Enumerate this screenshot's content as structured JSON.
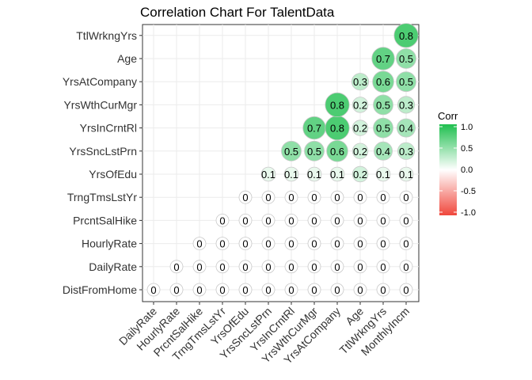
{
  "chart_data": {
    "type": "correlogram",
    "title": "Correlation Chart For TalentData",
    "x_labels": [
      "DailyRate",
      "HourlyRate",
      "PrcntSalHike",
      "TrngTmsLstYr",
      "YrsOfEdu",
      "YrsSncLstPrn",
      "YrsInCrntRl",
      "YrsWthCurMgr",
      "YrsAtCompany",
      "Age",
      "TtlWrkngYrs",
      "MonthlyIncm"
    ],
    "y_labels": [
      "DistFromHome",
      "DailyRate",
      "HourlyRate",
      "PrcntSalHike",
      "TrngTmsLstYr",
      "YrsOfEdu",
      "YrsSncLstPrn",
      "YrsInCrntRl",
      "YrsWthCurMgr",
      "YrsAtCompany",
      "Age",
      "TtlWrkngYrs"
    ],
    "cells": [
      {
        "x": "DailyRate",
        "y": "DistFromHome",
        "value": 0,
        "label": "0"
      },
      {
        "x": "HourlyRate",
        "y": "DistFromHome",
        "value": 0,
        "label": "0"
      },
      {
        "x": "PrcntSalHike",
        "y": "DistFromHome",
        "value": 0,
        "label": "0"
      },
      {
        "x": "TrngTmsLstYr",
        "y": "DistFromHome",
        "value": 0,
        "label": "0"
      },
      {
        "x": "YrsOfEdu",
        "y": "DistFromHome",
        "value": 0,
        "label": "0"
      },
      {
        "x": "YrsSncLstPrn",
        "y": "DistFromHome",
        "value": 0,
        "label": "0"
      },
      {
        "x": "YrsInCrntRl",
        "y": "DistFromHome",
        "value": 0,
        "label": "0"
      },
      {
        "x": "YrsWthCurMgr",
        "y": "DistFromHome",
        "value": 0,
        "label": "0"
      },
      {
        "x": "YrsAtCompany",
        "y": "DistFromHome",
        "value": 0,
        "label": "0"
      },
      {
        "x": "Age",
        "y": "DistFromHome",
        "value": 0,
        "label": "0"
      },
      {
        "x": "TtlWrkngYrs",
        "y": "DistFromHome",
        "value": 0,
        "label": "0"
      },
      {
        "x": "MonthlyIncm",
        "y": "DistFromHome",
        "value": 0,
        "label": "0"
      },
      {
        "x": "HourlyRate",
        "y": "DailyRate",
        "value": 0,
        "label": "0"
      },
      {
        "x": "PrcntSalHike",
        "y": "DailyRate",
        "value": 0,
        "label": "0"
      },
      {
        "x": "TrngTmsLstYr",
        "y": "DailyRate",
        "value": 0,
        "label": "0"
      },
      {
        "x": "YrsOfEdu",
        "y": "DailyRate",
        "value": 0,
        "label": "0"
      },
      {
        "x": "YrsSncLstPrn",
        "y": "DailyRate",
        "value": 0,
        "label": "0"
      },
      {
        "x": "YrsInCrntRl",
        "y": "DailyRate",
        "value": 0,
        "label": "0"
      },
      {
        "x": "YrsWthCurMgr",
        "y": "DailyRate",
        "value": 0,
        "label": "0"
      },
      {
        "x": "YrsAtCompany",
        "y": "DailyRate",
        "value": 0,
        "label": "0"
      },
      {
        "x": "Age",
        "y": "DailyRate",
        "value": 0,
        "label": "0"
      },
      {
        "x": "TtlWrkngYrs",
        "y": "DailyRate",
        "value": 0,
        "label": "0"
      },
      {
        "x": "MonthlyIncm",
        "y": "DailyRate",
        "value": 0,
        "label": "0"
      },
      {
        "x": "PrcntSalHike",
        "y": "HourlyRate",
        "value": 0,
        "label": "0"
      },
      {
        "x": "TrngTmsLstYr",
        "y": "HourlyRate",
        "value": 0,
        "label": "0"
      },
      {
        "x": "YrsOfEdu",
        "y": "HourlyRate",
        "value": 0,
        "label": "0"
      },
      {
        "x": "YrsSncLstPrn",
        "y": "HourlyRate",
        "value": 0,
        "label": "0"
      },
      {
        "x": "YrsInCrntRl",
        "y": "HourlyRate",
        "value": 0,
        "label": "0"
      },
      {
        "x": "YrsWthCurMgr",
        "y": "HourlyRate",
        "value": 0,
        "label": "0"
      },
      {
        "x": "YrsAtCompany",
        "y": "HourlyRate",
        "value": 0,
        "label": "0"
      },
      {
        "x": "Age",
        "y": "HourlyRate",
        "value": 0,
        "label": "0"
      },
      {
        "x": "TtlWrkngYrs",
        "y": "HourlyRate",
        "value": 0,
        "label": "0"
      },
      {
        "x": "MonthlyIncm",
        "y": "HourlyRate",
        "value": 0,
        "label": "0"
      },
      {
        "x": "TrngTmsLstYr",
        "y": "PrcntSalHike",
        "value": 0,
        "label": "0"
      },
      {
        "x": "YrsOfEdu",
        "y": "PrcntSalHike",
        "value": 0,
        "label": "0"
      },
      {
        "x": "YrsSncLstPrn",
        "y": "PrcntSalHike",
        "value": 0,
        "label": "0"
      },
      {
        "x": "YrsInCrntRl",
        "y": "PrcntSalHike",
        "value": 0,
        "label": "0"
      },
      {
        "x": "YrsWthCurMgr",
        "y": "PrcntSalHike",
        "value": 0,
        "label": "0"
      },
      {
        "x": "YrsAtCompany",
        "y": "PrcntSalHike",
        "value": 0,
        "label": "0"
      },
      {
        "x": "Age",
        "y": "PrcntSalHike",
        "value": 0,
        "label": "0"
      },
      {
        "x": "TtlWrkngYrs",
        "y": "PrcntSalHike",
        "value": 0,
        "label": "0"
      },
      {
        "x": "MonthlyIncm",
        "y": "PrcntSalHike",
        "value": 0,
        "label": "0"
      },
      {
        "x": "YrsOfEdu",
        "y": "TrngTmsLstYr",
        "value": 0,
        "label": "0"
      },
      {
        "x": "YrsSncLstPrn",
        "y": "TrngTmsLstYr",
        "value": 0,
        "label": "0"
      },
      {
        "x": "YrsInCrntRl",
        "y": "TrngTmsLstYr",
        "value": 0,
        "label": "0"
      },
      {
        "x": "YrsWthCurMgr",
        "y": "TrngTmsLstYr",
        "value": 0,
        "label": "0"
      },
      {
        "x": "YrsAtCompany",
        "y": "TrngTmsLstYr",
        "value": 0,
        "label": "0"
      },
      {
        "x": "Age",
        "y": "TrngTmsLstYr",
        "value": 0,
        "label": "0"
      },
      {
        "x": "TtlWrkngYrs",
        "y": "TrngTmsLstYr",
        "value": 0,
        "label": "0"
      },
      {
        "x": "MonthlyIncm",
        "y": "TrngTmsLstYr",
        "value": 0,
        "label": "0"
      },
      {
        "x": "YrsSncLstPrn",
        "y": "YrsOfEdu",
        "value": 0.1,
        "label": "0.1"
      },
      {
        "x": "YrsInCrntRl",
        "y": "YrsOfEdu",
        "value": 0.1,
        "label": "0.1"
      },
      {
        "x": "YrsWthCurMgr",
        "y": "YrsOfEdu",
        "value": 0.1,
        "label": "0.1"
      },
      {
        "x": "YrsAtCompany",
        "y": "YrsOfEdu",
        "value": 0.1,
        "label": "0.1"
      },
      {
        "x": "Age",
        "y": "YrsOfEdu",
        "value": 0.2,
        "label": "0.2"
      },
      {
        "x": "TtlWrkngYrs",
        "y": "YrsOfEdu",
        "value": 0.1,
        "label": "0.1"
      },
      {
        "x": "MonthlyIncm",
        "y": "YrsOfEdu",
        "value": 0.1,
        "label": "0.1"
      },
      {
        "x": "YrsInCrntRl",
        "y": "YrsSncLstPrn",
        "value": 0.5,
        "label": "0.5"
      },
      {
        "x": "YrsWthCurMgr",
        "y": "YrsSncLstPrn",
        "value": 0.5,
        "label": "0.5"
      },
      {
        "x": "YrsAtCompany",
        "y": "YrsSncLstPrn",
        "value": 0.6,
        "label": "0.6"
      },
      {
        "x": "Age",
        "y": "YrsSncLstPrn",
        "value": 0.2,
        "label": "0.2"
      },
      {
        "x": "TtlWrkngYrs",
        "y": "YrsSncLstPrn",
        "value": 0.4,
        "label": "0.4"
      },
      {
        "x": "MonthlyIncm",
        "y": "YrsSncLstPrn",
        "value": 0.3,
        "label": "0.3"
      },
      {
        "x": "YrsWthCurMgr",
        "y": "YrsInCrntRl",
        "value": 0.7,
        "label": "0.7"
      },
      {
        "x": "YrsAtCompany",
        "y": "YrsInCrntRl",
        "value": 0.8,
        "label": "0.8"
      },
      {
        "x": "Age",
        "y": "YrsInCrntRl",
        "value": 0.2,
        "label": "0.2"
      },
      {
        "x": "TtlWrkngYrs",
        "y": "YrsInCrntRl",
        "value": 0.5,
        "label": "0.5"
      },
      {
        "x": "MonthlyIncm",
        "y": "YrsInCrntRl",
        "value": 0.4,
        "label": "0.4"
      },
      {
        "x": "YrsAtCompany",
        "y": "YrsWthCurMgr",
        "value": 0.8,
        "label": "0.8"
      },
      {
        "x": "Age",
        "y": "YrsWthCurMgr",
        "value": 0.2,
        "label": "0.2"
      },
      {
        "x": "TtlWrkngYrs",
        "y": "YrsWthCurMgr",
        "value": 0.5,
        "label": "0.5"
      },
      {
        "x": "MonthlyIncm",
        "y": "YrsWthCurMgr",
        "value": 0.3,
        "label": "0.3"
      },
      {
        "x": "Age",
        "y": "YrsAtCompany",
        "value": 0.3,
        "label": "0.3"
      },
      {
        "x": "TtlWrkngYrs",
        "y": "YrsAtCompany",
        "value": 0.6,
        "label": "0.6"
      },
      {
        "x": "MonthlyIncm",
        "y": "YrsAtCompany",
        "value": 0.5,
        "label": "0.5"
      },
      {
        "x": "TtlWrkngYrs",
        "y": "Age",
        "value": 0.7,
        "label": "0.7"
      },
      {
        "x": "MonthlyIncm",
        "y": "Age",
        "value": 0.5,
        "label": "0.5"
      },
      {
        "x": "MonthlyIncm",
        "y": "TtlWrkngYrs",
        "value": 0.8,
        "label": "0.8"
      }
    ],
    "legend": {
      "title": "Corr",
      "ticks": [
        "1.0",
        "0.5",
        "0.0",
        "-0.5",
        "-1.0"
      ],
      "tick_values": [
        1.0,
        0.5,
        0.0,
        -0.5,
        -1.0
      ],
      "range": [
        -1,
        1
      ],
      "position": "right"
    },
    "colors": {
      "high": "#1fbf4f",
      "mid": "#ffffff",
      "low": "#f0473c"
    }
  }
}
